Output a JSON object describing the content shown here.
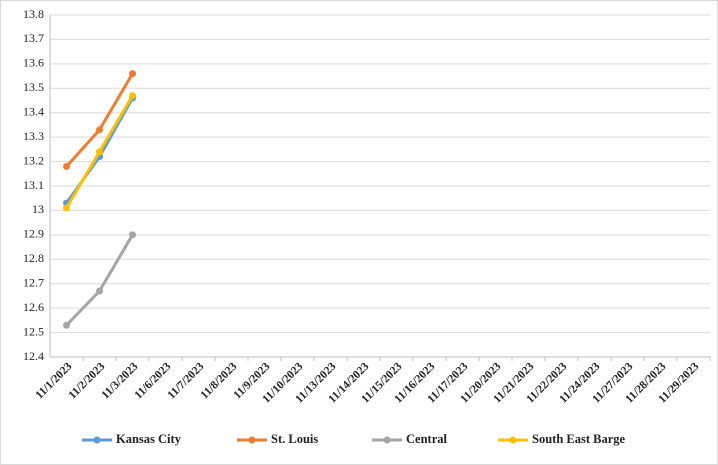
{
  "chart_data": {
    "type": "line",
    "categories": [
      "11/1/2023",
      "11/2/2023",
      "11/3/2023",
      "11/6/2023",
      "11/7/2023",
      "11/8/2023",
      "11/9/2023",
      "11/10/2023",
      "11/13/2023",
      "11/14/2023",
      "11/15/2023",
      "11/16/2023",
      "11/17/2023",
      "11/20/2023",
      "11/21/2023",
      "11/22/2023",
      "11/24/2023",
      "11/27/2023",
      "11/28/2023",
      "11/29/2023"
    ],
    "series": [
      {
        "name": "Kansas City",
        "color": "#5b9bd5",
        "values": [
          13.03,
          13.22,
          13.46,
          null,
          null,
          null,
          null,
          null,
          null,
          null,
          null,
          null,
          null,
          null,
          null,
          null,
          null,
          null,
          null,
          null
        ]
      },
      {
        "name": "St. Louis",
        "color": "#ed7d31",
        "values": [
          13.18,
          13.33,
          13.56,
          null,
          null,
          null,
          null,
          null,
          null,
          null,
          null,
          null,
          null,
          null,
          null,
          null,
          null,
          null,
          null,
          null
        ]
      },
      {
        "name": "Central",
        "color": "#a5a5a5",
        "values": [
          12.53,
          12.67,
          12.9,
          null,
          null,
          null,
          null,
          null,
          null,
          null,
          null,
          null,
          null,
          null,
          null,
          null,
          null,
          null,
          null,
          null
        ]
      },
      {
        "name": "South East Barge",
        "color": "#ffc000",
        "values": [
          13.01,
          13.24,
          13.47,
          null,
          null,
          null,
          null,
          null,
          null,
          null,
          null,
          null,
          null,
          null,
          null,
          null,
          null,
          null,
          null,
          null
        ]
      }
    ],
    "ylim": [
      12.4,
      13.8
    ],
    "yticks": [
      12.4,
      12.5,
      12.6,
      12.7,
      12.8,
      12.9,
      13,
      13.1,
      13.2,
      13.3,
      13.4,
      13.5,
      13.6,
      13.7,
      13.8
    ],
    "grid": true,
    "legend": "bottom"
  }
}
